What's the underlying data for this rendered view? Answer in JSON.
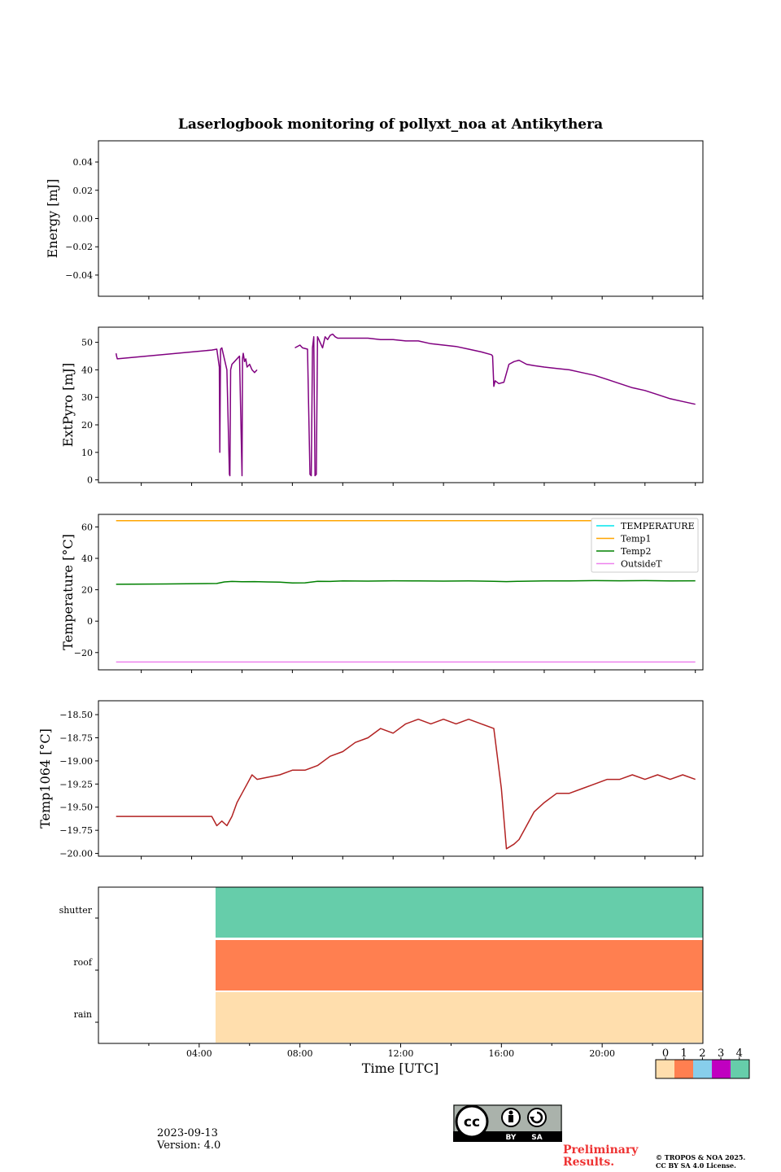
{
  "title": "Laserlogbook monitoring of pollyxt_noa at Antikythera",
  "xlabel": "Time [UTC]",
  "x_ticks": [
    "04:00",
    "08:00",
    "12:00",
    "16:00",
    "20:00"
  ],
  "footer": {
    "date": "2023-09-13",
    "version": "Version: 4.0",
    "preliminary": [
      "Preliminary",
      "Results."
    ],
    "copyright": [
      "© TROPOS & NOA 2025.",
      "CC BY SA 4.0 License."
    ],
    "license_badge": {
      "symbol": "cc",
      "labels": [
        "BY",
        "SA"
      ]
    }
  },
  "colors": {
    "energy": "#800080",
    "extpyro": "#800080",
    "temperature": "#00e5ee",
    "temp1": "#ffa500",
    "temp2": "#008000",
    "outsideT": "#ee82ee",
    "temp1064": "#b22222",
    "status_colorbar": [
      "#ffdead",
      "#ff7f50",
      "#87ceeb",
      "#c000c0",
      "#66cdaa"
    ]
  },
  "chart_data": [
    {
      "type": "line",
      "name": "energy",
      "ylabel": "Energy [mJ]",
      "ylim": [
        -0.055,
        0.055
      ],
      "y_ticks": [
        0.04,
        0.02,
        0.0,
        -0.02,
        -0.04
      ],
      "y_tick_labels": [
        "0.04",
        "0.02",
        "0.00",
        "−0.02",
        "−0.04"
      ],
      "x_unit": "hours UTC",
      "xlim": [
        0,
        24
      ],
      "series": []
    },
    {
      "type": "line",
      "name": "extpyro",
      "ylabel": "ExtPyro [mJ]",
      "ylim": [
        -1,
        55.5
      ],
      "y_ticks": [
        0,
        10,
        20,
        30,
        40,
        50
      ],
      "x_unit": "hours UTC",
      "xlim": [
        0.3,
        24.3
      ],
      "series": [
        {
          "x": [
            1.0,
            1.02,
            1.05,
            4.8,
            5.0,
            5.1,
            5.12,
            5.15,
            5.2,
            5.25,
            5.3,
            5.4,
            5.5,
            5.52,
            5.55,
            5.6,
            5.7,
            5.8,
            5.9,
            6.0,
            6.02,
            6.05,
            6.1,
            6.15,
            6.2,
            6.3,
            6.4,
            6.5,
            6.6
          ],
          "y": [
            46,
            45,
            44,
            47.2,
            47.5,
            41,
            10,
            47.5,
            48,
            46,
            44,
            40,
            2,
            1.5,
            40,
            42,
            43,
            44,
            45,
            1.5,
            44,
            46,
            43,
            44,
            41,
            42,
            40,
            39,
            40
          ]
        },
        {
          "x": [
            8.1,
            8.3,
            8.4,
            8.6,
            8.7,
            8.75,
            8.8,
            8.85,
            8.9,
            8.95,
            9.0,
            9.05,
            9.1,
            9.2,
            9.3,
            9.4,
            9.5,
            9.6,
            9.7,
            9.8,
            10.0,
            10.5,
            11.0,
            11.5,
            12.0,
            12.5,
            13.0,
            13.5,
            14.0,
            14.5,
            15.0,
            15.5,
            15.9,
            15.95,
            16.0,
            16.05,
            16.2,
            16.4,
            16.6,
            16.8,
            17.0,
            17.3,
            17.6,
            18.0,
            18.5,
            19.0,
            19.5,
            20.0,
            20.5,
            21.0,
            21.5,
            22.0,
            22.5,
            23.0,
            23.5,
            24.0
          ],
          "y": [
            48,
            49,
            48,
            47.5,
            2,
            1.5,
            48,
            52,
            1.5,
            2,
            52,
            51,
            50,
            48,
            52,
            51,
            52.5,
            53,
            52,
            51.5,
            51.5,
            51.5,
            51.5,
            51,
            51,
            50.5,
            50.5,
            49.5,
            49,
            48.5,
            47.5,
            46.5,
            45.5,
            45,
            34,
            36,
            35,
            35.5,
            42,
            43,
            43.5,
            42,
            41.5,
            41,
            40.5,
            40,
            39,
            38,
            36.5,
            35,
            33.5,
            32.5,
            31,
            29.5,
            28.5,
            27.5
          ]
        }
      ]
    },
    {
      "type": "line",
      "name": "temperature",
      "ylabel": "Temperature [°C]",
      "ylim": [
        -31,
        68
      ],
      "y_ticks": [
        -20,
        0,
        20,
        40,
        60
      ],
      "y_tick_labels": [
        "−20",
        "0",
        "20",
        "40",
        "60"
      ],
      "x_unit": "hours UTC",
      "xlim": [
        0.3,
        24.3
      ],
      "legend_placement": "top-right",
      "series": [
        {
          "name": "TEMPERATURE",
          "x": [],
          "y": []
        },
        {
          "name": "Temp1",
          "x": [
            1.0,
            21.2
          ],
          "y": [
            64,
            64
          ]
        },
        {
          "name": "Temp2",
          "x": [
            1.0,
            3.0,
            5.0,
            5.3,
            5.6,
            6.0,
            6.5,
            7.0,
            7.5,
            8.0,
            8.5,
            9.0,
            9.5,
            10.0,
            11.0,
            12.0,
            13.0,
            14.0,
            15.0,
            16.0,
            16.5,
            17.0,
            18.0,
            19.0,
            20.0,
            21.0,
            22.0,
            23.0,
            24.0
          ],
          "y": [
            23.5,
            23.7,
            24.0,
            25.0,
            25.3,
            25.1,
            25.2,
            25.0,
            24.8,
            24.3,
            24.4,
            25.4,
            25.3,
            25.6,
            25.5,
            25.7,
            25.6,
            25.5,
            25.6,
            25.4,
            25.2,
            25.4,
            25.6,
            25.6,
            25.8,
            25.7,
            25.8,
            25.6,
            25.7
          ]
        },
        {
          "name": "OutsideT",
          "x": [
            1.0,
            24.0
          ],
          "y": [
            -26,
            -26
          ]
        }
      ]
    },
    {
      "type": "line",
      "name": "temp1064",
      "ylabel": "Temp1064 [°C]",
      "ylim": [
        -20.03,
        -18.35
      ],
      "y_ticks": [
        -18.5,
        -18.75,
        -19.0,
        -19.25,
        -19.5,
        -19.75,
        -20.0
      ],
      "y_tick_labels": [
        "−18.50",
        "−18.75",
        "−19.00",
        "−19.25",
        "−19.50",
        "−19.75",
        "−20.00"
      ],
      "x_unit": "hours UTC",
      "xlim": [
        0.3,
        24.3
      ],
      "series": [
        {
          "x": [
            1.0,
            4.8,
            5.0,
            5.2,
            5.4,
            5.6,
            5.8,
            6.0,
            6.2,
            6.4,
            6.6,
            7.5,
            8.0,
            8.5,
            9.0,
            9.5,
            10.0,
            10.5,
            11.0,
            11.5,
            12.0,
            12.5,
            13.0,
            13.5,
            14.0,
            14.5,
            15.0,
            15.5,
            16.0,
            16.3,
            16.5,
            16.8,
            17.0,
            17.3,
            17.6,
            18.0,
            18.5,
            19.0,
            19.5,
            20.0,
            20.5,
            21.0,
            21.5,
            22.0,
            22.5,
            23.0,
            23.5,
            24.0
          ],
          "y": [
            -19.6,
            -19.6,
            -19.7,
            -19.65,
            -19.7,
            -19.6,
            -19.45,
            -19.35,
            -19.25,
            -19.15,
            -19.2,
            -19.15,
            -19.1,
            -19.1,
            -19.05,
            -18.95,
            -18.9,
            -18.8,
            -18.75,
            -18.65,
            -18.7,
            -18.6,
            -18.55,
            -18.6,
            -18.55,
            -18.6,
            -18.55,
            -18.6,
            -18.65,
            -19.3,
            -19.95,
            -19.9,
            -19.85,
            -19.7,
            -19.55,
            -19.45,
            -19.35,
            -19.35,
            -19.3,
            -19.25,
            -19.2,
            -19.2,
            -19.15,
            -19.2,
            -19.15,
            -19.2,
            -19.15,
            -19.2
          ]
        }
      ]
    },
    {
      "type": "heatmap",
      "name": "status",
      "y_categories": [
        "shutter",
        "roof",
        "rain"
      ],
      "x_unit": "hours UTC",
      "xlim": [
        0,
        24
      ],
      "segments": [
        {
          "row": "shutter",
          "start": 4.65,
          "end": 24,
          "value": 4
        },
        {
          "row": "roof",
          "start": 4.65,
          "end": 24,
          "value": 1
        },
        {
          "row": "rain",
          "start": 4.65,
          "end": 24,
          "value": 0
        }
      ],
      "colorbar_ticks": [
        "0",
        "1",
        "2",
        "3",
        "4"
      ]
    }
  ]
}
